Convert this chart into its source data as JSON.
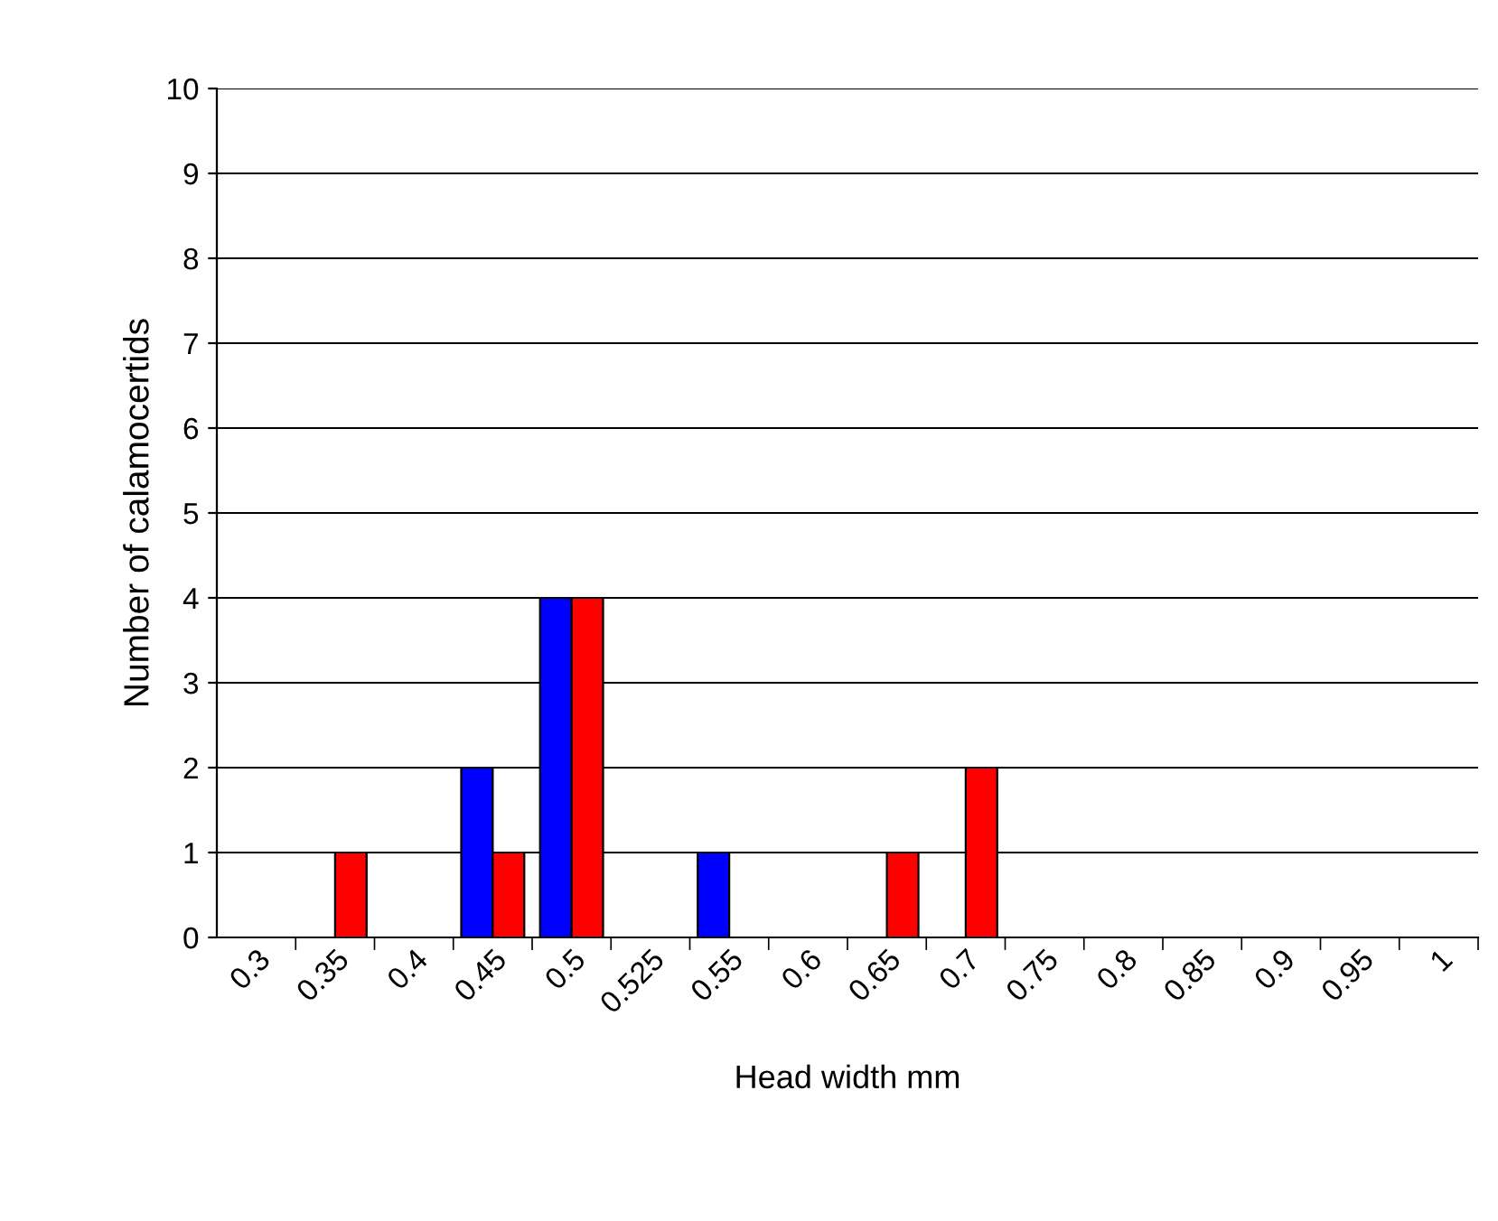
{
  "chart_data": {
    "type": "bar",
    "xlabel": "Head width mm",
    "ylabel": "Number of calamocertids",
    "categories": [
      "0.3",
      "0.35",
      "0.4",
      "0.45",
      "0.5",
      "0.525",
      "0.55",
      "0.6",
      "0.65",
      "0.7",
      "0.75",
      "0.8",
      "0.85",
      "0.9",
      "0.95",
      "1"
    ],
    "series": [
      {
        "color": "#0000ff",
        "values": [
          0,
          0,
          0,
          2,
          4,
          0,
          1,
          0,
          0,
          0,
          0,
          0,
          0,
          0,
          0,
          0
        ]
      },
      {
        "color": "#ff0000",
        "values": [
          0,
          1,
          0,
          1,
          4,
          0,
          0,
          0,
          1,
          2,
          0,
          0,
          0,
          0,
          0,
          0
        ]
      }
    ],
    "ylim": [
      0,
      10
    ],
    "yticks": [
      0,
      1,
      2,
      3,
      4,
      5,
      6,
      7,
      8,
      9,
      10
    ],
    "grid": "y",
    "legend": false
  }
}
